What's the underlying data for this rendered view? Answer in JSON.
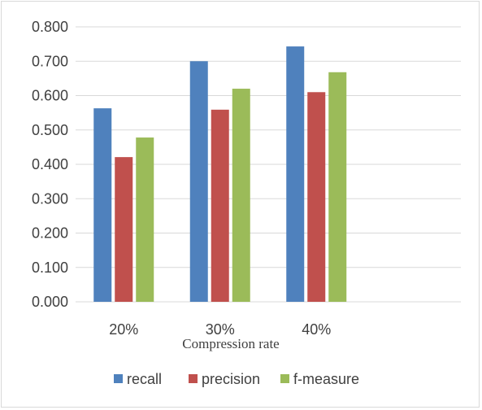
{
  "chart_data": {
    "type": "bar",
    "categories": [
      "20%",
      "30%",
      "40%"
    ],
    "series": [
      {
        "name": "recall",
        "values": [
          0.563,
          0.7,
          0.743
        ],
        "color": "#4f81bd"
      },
      {
        "name": "precision",
        "values": [
          0.421,
          0.559,
          0.61
        ],
        "color": "#c0504d"
      },
      {
        "name": "f-measure",
        "values": [
          0.478,
          0.62,
          0.668
        ],
        "color": "#9bbb59"
      }
    ],
    "xlabel": "Compression rate",
    "ylabel": "",
    "ylim": [
      0,
      0.8
    ],
    "yticks": [
      "0.000",
      "0.100",
      "0.200",
      "0.300",
      "0.400",
      "0.500",
      "0.600",
      "0.700",
      "0.800"
    ],
    "grid": true,
    "legend_position": "bottom"
  }
}
